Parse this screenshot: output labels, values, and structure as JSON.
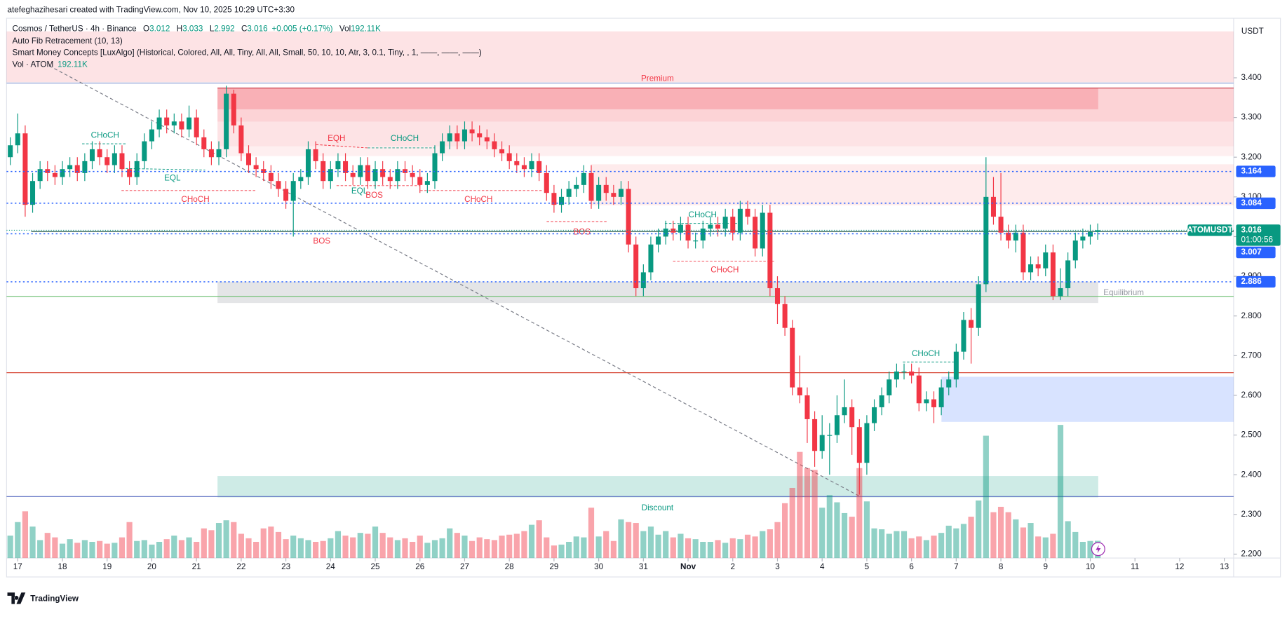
{
  "header": {
    "credit": "atefeghazihesari created with TradingView.com, Nov 10, 2025 10:29 UTC+3:30",
    "brand": "TradingView"
  },
  "legend": {
    "symbol": "Cosmos / TetherUS · 4h · Binance",
    "labels": [
      "O",
      "H",
      "L",
      "C",
      "Vol"
    ],
    "change": "+0.005 (+0.17%)",
    "vol_label": "192.11K",
    "indicators": [
      "Auto Fib Retracement (10, 13)",
      "Smart Money Concepts [LuxAlgo] (Historical, Colored, All, All, Tiny, All, All, Small, 50, 10, 10, Atr, 3, 0.1, Tiny, , 1, ——, ——, ——)"
    ],
    "vol_indicator": "Vol · ATOM"
  },
  "chart_data": {
    "type": "candlestick",
    "currency": "USDT",
    "ticker": "ATOMUSDT",
    "countdown": "01:00:56",
    "up_color": "#089981",
    "down_color": "#f23645",
    "level_color": "#2962ff",
    "xlim": [
      -2,
      657
    ],
    "ylim": [
      2.19,
      3.55
    ],
    "vlim": [
      0,
      6000
    ],
    "yticks": [
      {
        "value": 3.4,
        "label": "3.400"
      },
      {
        "value": 3.3,
        "label": "3.300"
      },
      {
        "value": 3.2,
        "label": "3.200"
      },
      {
        "value": 3.1,
        "label": "3.100"
      },
      {
        "value": 3.0,
        "label": "3.000"
      },
      {
        "value": 2.9,
        "label": "2.900"
      },
      {
        "value": 2.8,
        "label": "2.800"
      },
      {
        "value": 2.7,
        "label": "2.700"
      },
      {
        "value": 2.6,
        "label": "2.600"
      },
      {
        "value": 2.5,
        "label": "2.500"
      },
      {
        "value": 2.4,
        "label": "2.400"
      },
      {
        "value": 2.3,
        "label": "2.300"
      },
      {
        "value": 2.2,
        "label": "2.200"
      }
    ],
    "xticks": [
      {
        "value": 4,
        "label": "17"
      },
      {
        "value": 28,
        "label": "18"
      },
      {
        "value": 52,
        "label": "19"
      },
      {
        "value": 76,
        "label": "20"
      },
      {
        "value": 100,
        "label": "21"
      },
      {
        "value": 124,
        "label": "22"
      },
      {
        "value": 148,
        "label": "23"
      },
      {
        "value": 172,
        "label": "24"
      },
      {
        "value": 196,
        "label": "25"
      },
      {
        "value": 220,
        "label": "26"
      },
      {
        "value": 244,
        "label": "27"
      },
      {
        "value": 268,
        "label": "28"
      },
      {
        "value": 292,
        "label": "29"
      },
      {
        "value": 316,
        "label": "30"
      },
      {
        "value": 340,
        "label": "31"
      },
      {
        "value": 364,
        "label": "Nov"
      },
      {
        "value": 388,
        "label": "2"
      },
      {
        "value": 412,
        "label": "3"
      },
      {
        "value": 436,
        "label": "4"
      },
      {
        "value": 460,
        "label": "5"
      },
      {
        "value": 484,
        "label": "6"
      },
      {
        "value": 508,
        "label": "7"
      },
      {
        "value": 532,
        "label": "8"
      },
      {
        "value": 556,
        "label": "9"
      },
      {
        "value": 580,
        "label": "10"
      },
      {
        "value": 604,
        "label": "11"
      },
      {
        "value": 628,
        "label": "12"
      },
      {
        "value": 652,
        "label": "13"
      }
    ],
    "levels": [
      3.164,
      3.084,
      3.007,
      2.886
    ],
    "annotations": [
      "Premium",
      "CHoCH",
      "EQL",
      "CHoCH",
      "BOS",
      "EQH",
      "CHoCH",
      "EQL",
      "BOS",
      "CHoCH",
      "BOS",
      "CHoCH",
      "CHoCH",
      "CHoCH",
      "Equilibrium",
      "Discount"
    ],
    "x": [
      0,
      4,
      8,
      12,
      16,
      20,
      24,
      28,
      32,
      36,
      40,
      44,
      48,
      52,
      56,
      60,
      64,
      68,
      72,
      76,
      80,
      84,
      88,
      92,
      96,
      100,
      104,
      108,
      112,
      116,
      120,
      124,
      128,
      132,
      136,
      140,
      144,
      148,
      152,
      156,
      160,
      164,
      168,
      172,
      176,
      180,
      184,
      188,
      192,
      196,
      200,
      204,
      208,
      212,
      216,
      220,
      224,
      228,
      232,
      236,
      240,
      244,
      248,
      252,
      256,
      260,
      264,
      268,
      272,
      276,
      280,
      284,
      288,
      292,
      296,
      300,
      304,
      308,
      312,
      316,
      320,
      324,
      328,
      332,
      336,
      340,
      344,
      348,
      352,
      356,
      360,
      364,
      368,
      372,
      376,
      380,
      384,
      388,
      392,
      396,
      400,
      404,
      408,
      412,
      416,
      420,
      424,
      428,
      432,
      436,
      440,
      444,
      448,
      452,
      456,
      460,
      464,
      468,
      472,
      476,
      480,
      484,
      488,
      492,
      496,
      500,
      504,
      508,
      512,
      516,
      520,
      524,
      528,
      532,
      536,
      540,
      544,
      548,
      552,
      556,
      560,
      564,
      568,
      572,
      576,
      580,
      584
    ],
    "open": [
      3.2,
      3.23,
      3.26,
      3.08,
      3.14,
      3.17,
      3.16,
      3.15,
      3.17,
      3.18,
      3.16,
      3.19,
      3.22,
      3.2,
      3.18,
      3.21,
      3.17,
      3.15,
      3.19,
      3.24,
      3.27,
      3.3,
      3.28,
      3.29,
      3.27,
      3.3,
      3.25,
      3.22,
      3.2,
      3.22,
      3.36,
      3.28,
      3.21,
      3.18,
      3.17,
      3.16,
      3.14,
      3.12,
      3.09,
      3.14,
      3.15,
      3.22,
      3.19,
      3.14,
      3.17,
      3.19,
      3.16,
      3.15,
      3.18,
      3.14,
      3.17,
      3.15,
      3.14,
      3.17,
      3.16,
      3.15,
      3.13,
      3.14,
      3.21,
      3.24,
      3.26,
      3.24,
      3.27,
      3.26,
      3.25,
      3.24,
      3.22,
      3.21,
      3.19,
      3.18,
      3.17,
      3.19,
      3.16,
      3.11,
      3.08,
      3.1,
      3.12,
      3.13,
      3.16,
      3.09,
      3.13,
      3.11,
      3.1,
      3.12,
      2.98,
      2.87,
      2.91,
      2.98,
      3.0,
      3.02,
      3.01,
      3.03,
      2.99,
      2.99,
      3.02,
      3.03,
      3.02,
      3.05,
      3.01,
      3.07,
      3.05,
      2.97,
      3.06,
      2.87,
      2.83,
      2.77,
      2.62,
      2.6,
      2.54,
      2.46,
      2.5,
      2.5,
      2.55,
      2.57,
      2.52,
      2.43,
      2.53,
      2.57,
      2.6,
      2.64,
      2.66,
      2.66,
      2.65,
      2.58,
      2.59,
      2.57,
      2.62,
      2.64,
      2.71,
      2.79,
      2.77,
      2.88,
      3.1,
      3.05,
      3.01,
      2.99,
      3.01,
      2.91,
      2.93,
      2.92,
      2.96,
      2.85,
      2.87,
      2.94,
      2.99,
      3.0,
      3.012
    ],
    "high": [
      3.25,
      3.31,
      3.28,
      3.16,
      3.19,
      3.19,
      3.18,
      3.19,
      3.2,
      3.2,
      3.21,
      3.24,
      3.24,
      3.22,
      3.23,
      3.23,
      3.19,
      3.21,
      3.26,
      3.29,
      3.32,
      3.32,
      3.31,
      3.31,
      3.33,
      3.32,
      3.27,
      3.24,
      3.24,
      3.38,
      3.37,
      3.3,
      3.23,
      3.2,
      3.19,
      3.18,
      3.16,
      3.14,
      3.16,
      3.17,
      3.24,
      3.24,
      3.21,
      3.19,
      3.21,
      3.21,
      3.18,
      3.2,
      3.2,
      3.19,
      3.19,
      3.17,
      3.19,
      3.19,
      3.18,
      3.17,
      3.16,
      3.23,
      3.26,
      3.28,
      3.28,
      3.29,
      3.29,
      3.28,
      3.27,
      3.26,
      3.24,
      3.23,
      3.21,
      3.2,
      3.21,
      3.21,
      3.18,
      3.13,
      3.12,
      3.14,
      3.15,
      3.18,
      3.18,
      3.15,
      3.15,
      3.13,
      3.14,
      3.14,
      3.0,
      2.93,
      3.0,
      3.02,
      3.04,
      3.04,
      3.05,
      3.05,
      3.01,
      3.04,
      3.05,
      3.05,
      3.07,
      3.07,
      3.09,
      3.09,
      3.07,
      3.08,
      3.08,
      2.9,
      2.85,
      2.79,
      2.7,
      2.62,
      2.56,
      2.55,
      2.53,
      2.6,
      2.64,
      2.59,
      2.54,
      2.55,
      2.59,
      2.62,
      2.66,
      2.68,
      2.68,
      2.68,
      2.67,
      2.61,
      2.61,
      2.64,
      2.66,
      2.73,
      2.81,
      2.82,
      2.9,
      3.2,
      3.15,
      3.16,
      3.03,
      3.03,
      3.03,
      2.95,
      2.95,
      2.98,
      2.98,
      2.92,
      2.96,
      3.01,
      3.02,
      3.03,
      3.033
    ],
    "low": [
      3.18,
      3.21,
      3.05,
      3.06,
      3.12,
      3.14,
      3.13,
      3.13,
      3.15,
      3.14,
      3.14,
      3.17,
      3.18,
      3.16,
      3.16,
      3.15,
      3.13,
      3.13,
      3.17,
      3.22,
      3.25,
      3.26,
      3.26,
      3.25,
      3.25,
      3.23,
      3.2,
      3.18,
      3.18,
      3.2,
      3.26,
      3.19,
      3.16,
      3.15,
      3.14,
      3.12,
      3.1,
      3.07,
      3.0,
      3.12,
      3.13,
      3.17,
      3.12,
      3.12,
      3.15,
      3.14,
      3.13,
      3.13,
      3.12,
      3.12,
      3.13,
      3.12,
      3.12,
      3.14,
      3.13,
      3.11,
      3.11,
      3.12,
      3.19,
      3.22,
      3.22,
      3.22,
      3.24,
      3.23,
      3.22,
      3.2,
      3.19,
      3.17,
      3.16,
      3.15,
      3.15,
      3.14,
      3.09,
      3.06,
      3.06,
      3.08,
      3.1,
      3.11,
      3.07,
      3.07,
      3.09,
      3.08,
      3.08,
      2.96,
      2.85,
      2.85,
      2.89,
      2.96,
      2.98,
      2.99,
      2.99,
      2.97,
      2.97,
      2.97,
      3.0,
      3.0,
      3.0,
      2.99,
      2.99,
      3.03,
      2.95,
      2.95,
      2.85,
      2.78,
      2.75,
      2.6,
      2.58,
      2.48,
      2.42,
      2.44,
      2.4,
      2.48,
      2.53,
      2.45,
      2.35,
      2.4,
      2.51,
      2.55,
      2.58,
      2.62,
      2.64,
      2.63,
      2.56,
      2.56,
      2.53,
      2.55,
      2.6,
      2.62,
      2.69,
      2.68,
      2.75,
      2.86,
      3.03,
      2.99,
      2.97,
      2.96,
      2.89,
      2.89,
      2.9,
      2.9,
      2.84,
      2.84,
      2.85,
      2.92,
      2.97,
      2.98,
      2.992
    ],
    "close": [
      3.23,
      3.26,
      3.08,
      3.14,
      3.17,
      3.16,
      3.15,
      3.17,
      3.18,
      3.16,
      3.19,
      3.22,
      3.2,
      3.18,
      3.21,
      3.17,
      3.15,
      3.19,
      3.24,
      3.27,
      3.3,
      3.28,
      3.29,
      3.27,
      3.3,
      3.25,
      3.22,
      3.2,
      3.22,
      3.36,
      3.28,
      3.21,
      3.18,
      3.17,
      3.16,
      3.14,
      3.12,
      3.09,
      3.14,
      3.15,
      3.22,
      3.19,
      3.14,
      3.17,
      3.19,
      3.16,
      3.15,
      3.18,
      3.14,
      3.17,
      3.15,
      3.14,
      3.17,
      3.16,
      3.15,
      3.13,
      3.14,
      3.21,
      3.24,
      3.26,
      3.24,
      3.27,
      3.26,
      3.25,
      3.24,
      3.22,
      3.21,
      3.19,
      3.18,
      3.17,
      3.19,
      3.16,
      3.11,
      3.08,
      3.1,
      3.12,
      3.13,
      3.16,
      3.09,
      3.13,
      3.11,
      3.1,
      3.12,
      2.98,
      2.87,
      2.91,
      2.98,
      3.0,
      3.02,
      3.01,
      3.03,
      2.99,
      2.99,
      3.02,
      3.03,
      3.02,
      3.05,
      3.01,
      3.07,
      3.05,
      2.97,
      3.06,
      2.87,
      2.83,
      2.77,
      2.62,
      2.6,
      2.54,
      2.46,
      2.5,
      2.5,
      2.55,
      2.57,
      2.52,
      2.43,
      2.53,
      2.57,
      2.6,
      2.64,
      2.66,
      2.66,
      2.65,
      2.58,
      2.59,
      2.57,
      2.62,
      2.64,
      2.71,
      2.79,
      2.77,
      2.88,
      3.1,
      3.05,
      3.01,
      2.99,
      3.01,
      2.91,
      2.93,
      2.92,
      2.96,
      2.85,
      2.87,
      2.94,
      2.99,
      3.0,
      3.012,
      3.016
    ],
    "volume": [
      250,
      400,
      520,
      350,
      200,
      280,
      230,
      160,
      210,
      170,
      200,
      180,
      190,
      160,
      170,
      230,
      400,
      190,
      200,
      150,
      180,
      210,
      250,
      200,
      230,
      180,
      330,
      310,
      390,
      420,
      400,
      270,
      220,
      180,
      330,
      350,
      290,
      210,
      250,
      220,
      200,
      180,
      190,
      220,
      300,
      250,
      230,
      280,
      270,
      350,
      280,
      230,
      200,
      220,
      180,
      250,
      170,
      200,
      220,
      330,
      280,
      250,
      190,
      230,
      210,
      200,
      250,
      260,
      270,
      300,
      370,
      420,
      230,
      140,
      150,
      180,
      240,
      230,
      560,
      240,
      300,
      190,
      430,
      400,
      390,
      300,
      350,
      260,
      300,
      230,
      270,
      220,
      210,
      180,
      180,
      200,
      170,
      220,
      210,
      260,
      240,
      300,
      320,
      400,
      610,
      780,
      1180,
      1000,
      980,
      560,
      700,
      620,
      500,
      460,
      1000,
      630,
      330,
      320,
      270,
      300,
      300,
      220,
      240,
      200,
      250,
      280,
      360,
      330,
      380,
      460,
      640,
      1360,
      510,
      570,
      510,
      430,
      340,
      390,
      240,
      230,
      270,
      1480,
      410,
      290,
      180,
      190,
      192.11
    ]
  }
}
